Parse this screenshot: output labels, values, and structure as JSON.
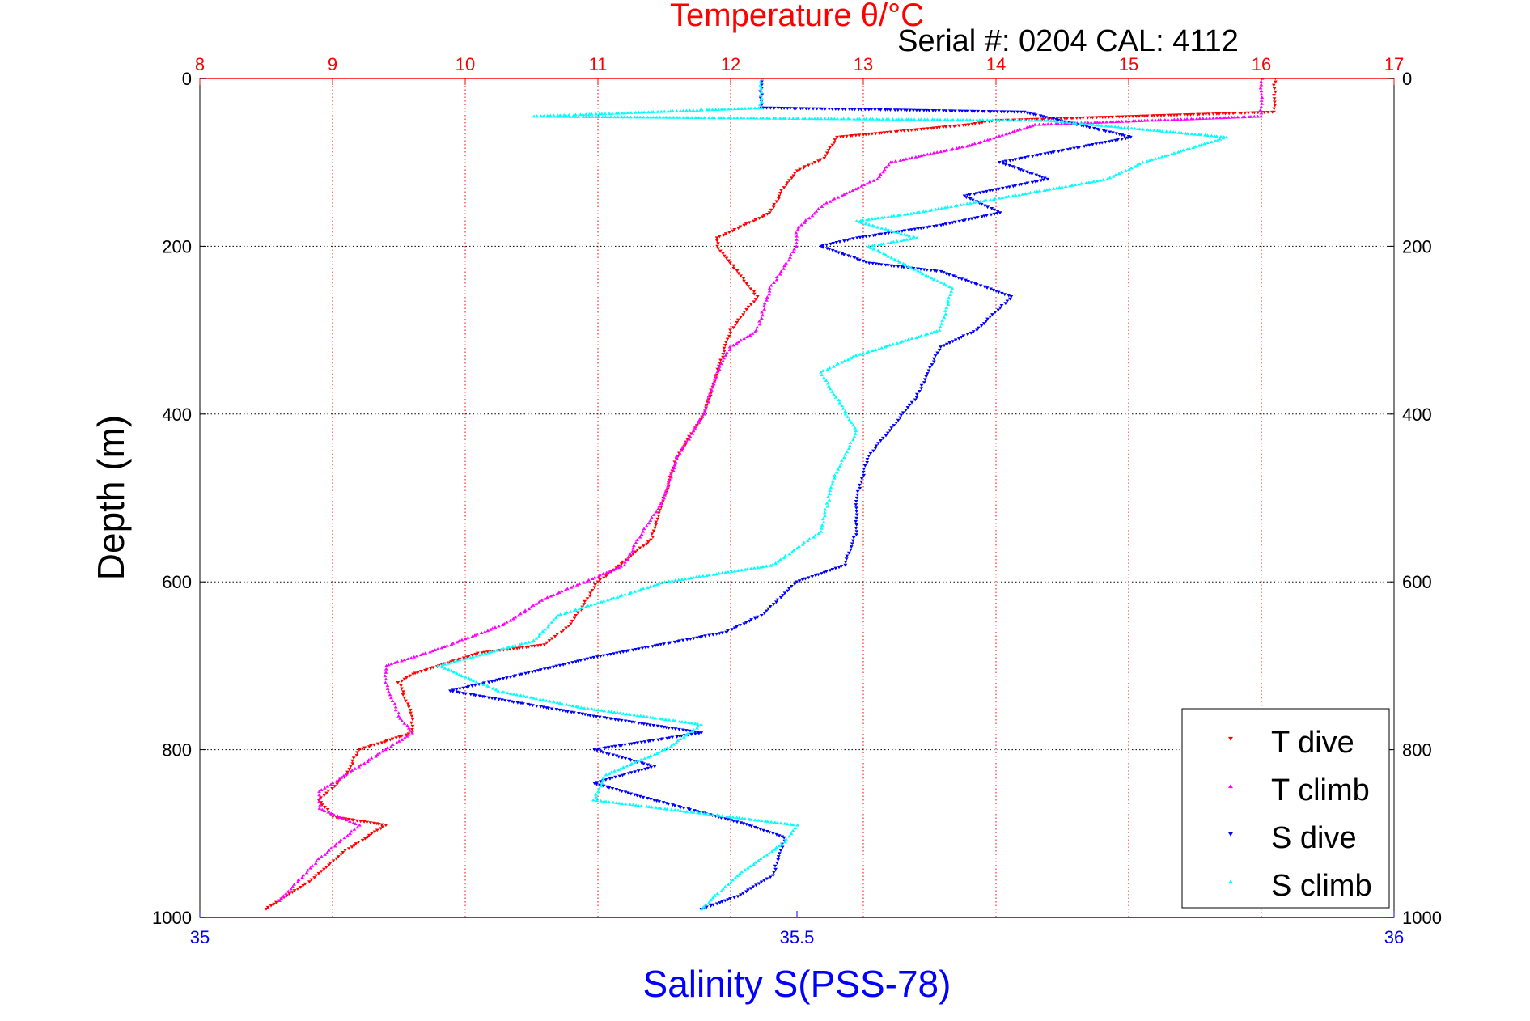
{
  "chart_data": {
    "type": "scatter",
    "title": "Temperature θ/°C",
    "subtitle": "Serial #: 0204  CAL: 4112",
    "ylabel": "Depth (m)",
    "xlabel": "Salinity S(PSS-78)",
    "y_axis": {
      "range": [
        0,
        1000
      ],
      "inverted": true,
      "ticks": [
        0,
        200,
        400,
        600,
        800,
        1000
      ],
      "mirrored_right": true
    },
    "x_top_axis": {
      "quantity": "Temperature",
      "range": [
        8,
        17
      ],
      "ticks": [
        8,
        9,
        10,
        11,
        12,
        13,
        14,
        15,
        16,
        17
      ],
      "color": "#ff0000"
    },
    "x_bottom_axis": {
      "quantity": "Salinity",
      "range": [
        35,
        36
      ],
      "ticks": [
        "35",
        "35.5",
        "36"
      ],
      "tick_values": [
        35,
        35.5,
        36
      ],
      "color": "#0000ff"
    },
    "grid": {
      "vertical": true,
      "vertical_color": "#ff0000",
      "horizontal": true,
      "horizontal_color": "#000000",
      "style": "dotted"
    },
    "legend": {
      "position": "bottom-right"
    },
    "series": [
      {
        "name": "T dive",
        "axis": "temperature",
        "color": "#ff0000",
        "marker": "triangle-down",
        "points": [
          [
            16.1,
            0
          ],
          [
            16.1,
            40
          ],
          [
            14,
            50
          ],
          [
            13.8,
            55
          ],
          [
            12.8,
            70
          ],
          [
            12.7,
            95
          ],
          [
            12.5,
            110
          ],
          [
            12.4,
            130
          ],
          [
            12.3,
            160
          ],
          [
            11.9,
            190
          ],
          [
            11.9,
            200
          ],
          [
            12.0,
            220
          ],
          [
            12.2,
            260
          ],
          [
            12.0,
            300
          ],
          [
            11.9,
            350
          ],
          [
            11.8,
            400
          ],
          [
            11.6,
            450
          ],
          [
            11.5,
            500
          ],
          [
            11.4,
            550
          ],
          [
            11.0,
            600
          ],
          [
            10.8,
            650
          ],
          [
            10.6,
            675
          ],
          [
            10.1,
            685
          ],
          [
            9.6,
            710
          ],
          [
            9.5,
            720
          ],
          [
            9.6,
            760
          ],
          [
            9.6,
            780
          ],
          [
            9.2,
            800
          ],
          [
            9.1,
            830
          ],
          [
            8.9,
            860
          ],
          [
            9.0,
            880
          ],
          [
            9.4,
            890
          ],
          [
            9.1,
            920
          ],
          [
            8.8,
            960
          ],
          [
            8.5,
            990
          ]
        ]
      },
      {
        "name": "T climb",
        "axis": "temperature",
        "color": "#ff00ff",
        "marker": "triangle-up",
        "points": [
          [
            16.0,
            0
          ],
          [
            16.0,
            45
          ],
          [
            14.3,
            55
          ],
          [
            13.8,
            80
          ],
          [
            13.2,
            100
          ],
          [
            13.1,
            120
          ],
          [
            12.7,
            150
          ],
          [
            12.5,
            180
          ],
          [
            12.5,
            200
          ],
          [
            12.3,
            250
          ],
          [
            12.2,
            300
          ],
          [
            12.0,
            320
          ],
          [
            11.9,
            350
          ],
          [
            11.8,
            400
          ],
          [
            11.6,
            450
          ],
          [
            11.5,
            500
          ],
          [
            11.3,
            550
          ],
          [
            11.2,
            580
          ],
          [
            10.6,
            620
          ],
          [
            10.3,
            650
          ],
          [
            9.8,
            680
          ],
          [
            9.4,
            700
          ],
          [
            9.4,
            720
          ],
          [
            9.5,
            760
          ],
          [
            9.6,
            780
          ],
          [
            9.3,
            810
          ],
          [
            8.9,
            850
          ],
          [
            8.9,
            870
          ],
          [
            9.2,
            890
          ],
          [
            8.9,
            930
          ],
          [
            8.6,
            980
          ]
        ]
      },
      {
        "name": "S dive",
        "axis": "salinity",
        "color": "#0000ff",
        "marker": "triangle-down",
        "points": [
          [
            35.47,
            0
          ],
          [
            35.47,
            35
          ],
          [
            35.69,
            40
          ],
          [
            35.78,
            70
          ],
          [
            35.67,
            100
          ],
          [
            35.71,
            120
          ],
          [
            35.64,
            140
          ],
          [
            35.67,
            160
          ],
          [
            35.62,
            175
          ],
          [
            35.55,
            190
          ],
          [
            35.52,
            200
          ],
          [
            35.56,
            220
          ],
          [
            35.62,
            230
          ],
          [
            35.68,
            260
          ],
          [
            35.65,
            300
          ],
          [
            35.62,
            320
          ],
          [
            35.6,
            380
          ],
          [
            35.56,
            450
          ],
          [
            35.55,
            500
          ],
          [
            35.55,
            540
          ],
          [
            35.54,
            580
          ],
          [
            35.5,
            600
          ],
          [
            35.47,
            640
          ],
          [
            35.44,
            660
          ],
          [
            35.33,
            690
          ],
          [
            35.27,
            710
          ],
          [
            35.21,
            730
          ],
          [
            35.33,
            760
          ],
          [
            35.42,
            780
          ],
          [
            35.33,
            800
          ],
          [
            35.38,
            820
          ],
          [
            35.33,
            840
          ],
          [
            35.38,
            860
          ],
          [
            35.46,
            890
          ],
          [
            35.49,
            905
          ],
          [
            35.48,
            950
          ],
          [
            35.45,
            975
          ],
          [
            35.42,
            990
          ]
        ]
      },
      {
        "name": "S climb",
        "axis": "salinity",
        "color": "#00ffff",
        "marker": "triangle-up",
        "points": [
          [
            35.47,
            0
          ],
          [
            35.47,
            35
          ],
          [
            35.28,
            45
          ],
          [
            35.71,
            50
          ],
          [
            35.86,
            70
          ],
          [
            35.79,
            100
          ],
          [
            35.76,
            120
          ],
          [
            35.6,
            160
          ],
          [
            35.55,
            170
          ],
          [
            35.6,
            190
          ],
          [
            35.56,
            200
          ],
          [
            35.63,
            250
          ],
          [
            35.62,
            300
          ],
          [
            35.55,
            330
          ],
          [
            35.52,
            350
          ],
          [
            35.55,
            420
          ],
          [
            35.53,
            480
          ],
          [
            35.52,
            540
          ],
          [
            35.48,
            580
          ],
          [
            35.39,
            600
          ],
          [
            35.3,
            640
          ],
          [
            35.28,
            670
          ],
          [
            35.2,
            700
          ],
          [
            35.25,
            730
          ],
          [
            35.32,
            750
          ],
          [
            35.42,
            770
          ],
          [
            35.39,
            800
          ],
          [
            35.34,
            830
          ],
          [
            35.33,
            860
          ],
          [
            35.5,
            890
          ],
          [
            35.49,
            910
          ],
          [
            35.45,
            950
          ],
          [
            35.42,
            990
          ]
        ]
      }
    ]
  }
}
